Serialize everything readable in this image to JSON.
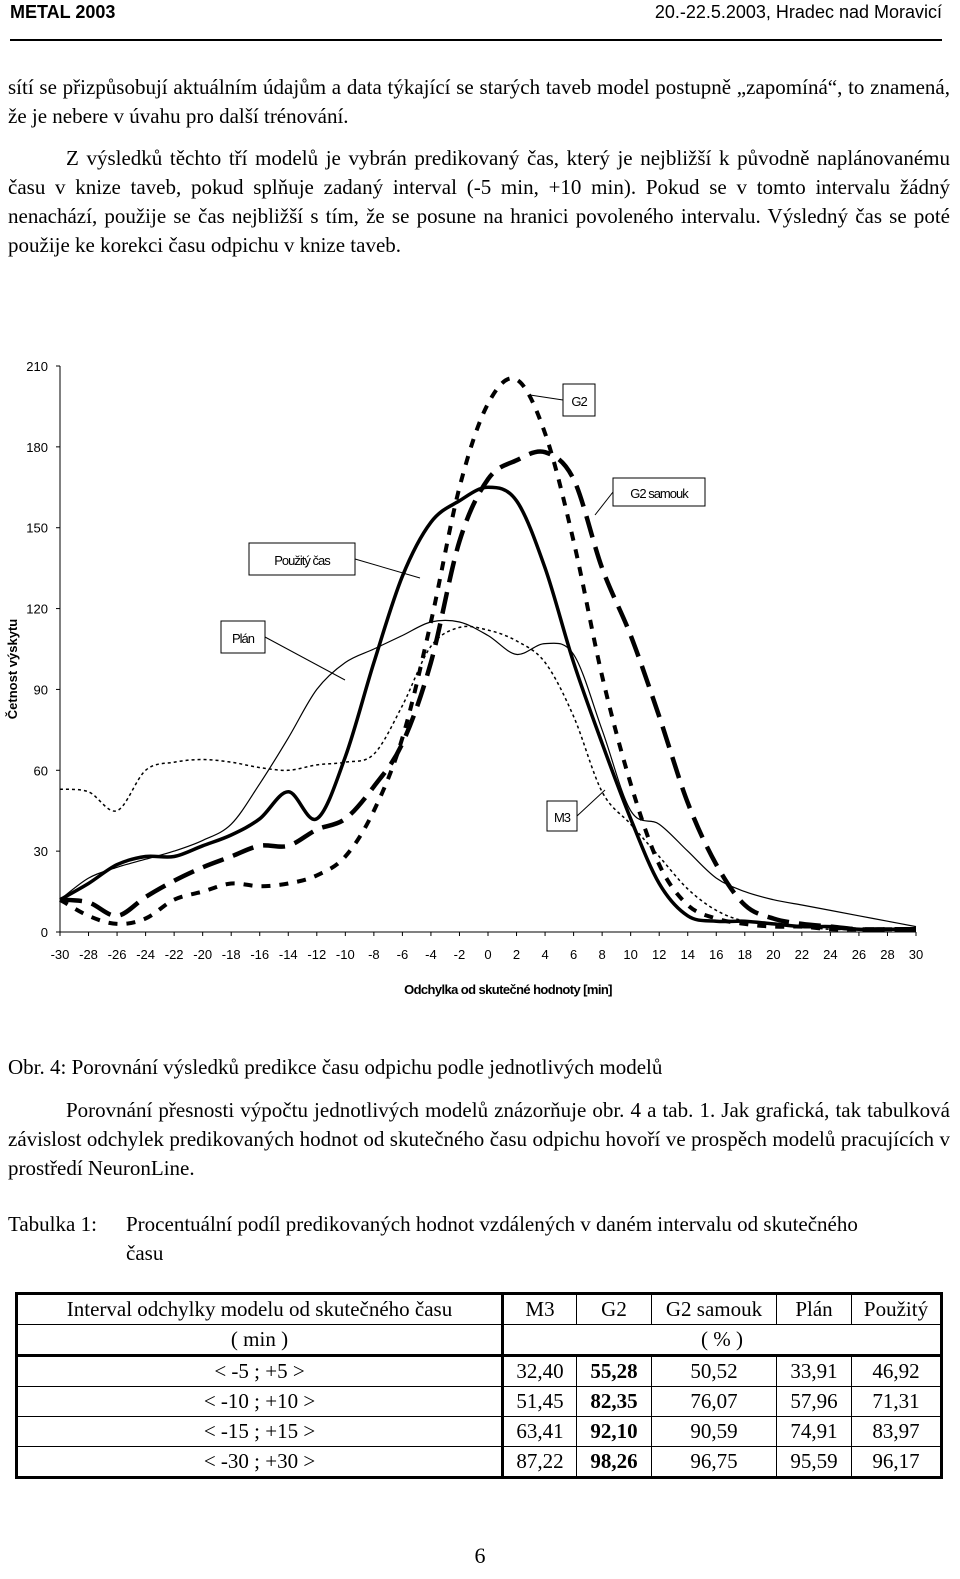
{
  "header": {
    "left": "METAL 2003",
    "right": "20.-22.5.2003, Hradec nad Moravicí"
  },
  "paragraphs": {
    "p1": "sítí se přizpůsobují aktuálním údajům a data týkající se starých taveb model postupně „zapomíná“, to znamená, že je nebere v úvahu pro další trénování.",
    "p2": "Z výsledků těchto tří modelů je vybrán predikovaný čas, který je nejbližší k původně naplánovanému času v knize taveb, pokud splňuje zadaný interval (-5 min, +10 min). Pokud se v tomto intervalu žádný nenachází, použije se čas nejbližší s tím, že se posune na hranici povoleného intervalu. Výsledný čas se poté použije ke korekci času odpichu v knize taveb.",
    "p3": "Porovnání přesnosti výpočtu jednotlivých modelů znázorňuje obr. 4 a tab. 1. Jak grafická, tak tabulková závislost odchylek predikovaných hodnot od skutečného času odpichu hovoří ve prospěch modelů pracujících v prostředí NeuronLine."
  },
  "figure_caption": "Obr. 4: Porovnání výsledků predikce času odpichu podle jednotlivých modelů",
  "chart_data": {
    "type": "line",
    "xlabel": "Odchylka od skutečné hodnoty [min]",
    "ylabel": "Četnost výskytu",
    "xlim": [
      -30,
      30
    ],
    "ylim": [
      0,
      210
    ],
    "x": [
      -30,
      -28,
      -26,
      -24,
      -22,
      -20,
      -18,
      -16,
      -14,
      -12,
      -10,
      -8,
      -6,
      -4,
      -2,
      0,
      2,
      4,
      6,
      8,
      10,
      12,
      14,
      16,
      18,
      20,
      22,
      24,
      26,
      28,
      30
    ],
    "series": [
      {
        "name": "G2",
        "style": "dash-thick",
        "values": [
          12,
          6,
          3,
          5,
          12,
          15,
          18,
          17,
          18,
          21,
          28,
          45,
          72,
          115,
          165,
          196,
          205,
          185,
          145,
          95,
          55,
          25,
          10,
          5,
          3,
          2,
          2,
          1,
          1,
          1,
          1
        ]
      },
      {
        "name": "G2 samouk",
        "style": "longdash-thick",
        "values": [
          12,
          11,
          6,
          13,
          19,
          24,
          28,
          32,
          32,
          38,
          42,
          54,
          70,
          100,
          145,
          168,
          175,
          178,
          168,
          135,
          110,
          80,
          48,
          25,
          10,
          5,
          3,
          2,
          1,
          1,
          1
        ]
      },
      {
        "name": "Plán",
        "style": "dotted",
        "values": [
          53,
          52,
          45,
          60,
          63,
          64,
          63,
          61,
          60,
          62,
          63,
          66,
          84,
          106,
          113,
          112,
          108,
          100,
          80,
          52,
          40,
          28,
          16,
          8,
          4,
          3,
          2,
          1,
          1,
          1,
          1
        ]
      },
      {
        "name": "Použitý čas",
        "style": "solid-thick",
        "values": [
          12,
          18,
          25,
          28,
          28,
          32,
          36,
          42,
          52,
          42,
          65,
          100,
          132,
          152,
          160,
          165,
          160,
          135,
          100,
          70,
          42,
          18,
          6,
          4,
          4,
          3,
          2,
          2,
          1,
          1,
          1
        ]
      },
      {
        "name": "M3",
        "style": "solid-thin",
        "values": [
          12,
          20,
          24,
          27,
          30,
          34,
          40,
          55,
          72,
          90,
          100,
          105,
          110,
          115,
          115,
          110,
          103,
          107,
          103,
          75,
          45,
          40,
          30,
          20,
          15,
          12,
          10,
          8,
          6,
          4,
          2
        ]
      }
    ],
    "xticks": [
      "-30",
      "-28",
      "-26",
      "-24",
      "-22",
      "-20",
      "-18",
      "-16",
      "-14",
      "-12",
      "-10",
      "-8",
      "-6",
      "-4",
      "-2",
      "0",
      "2",
      "4",
      "6",
      "8",
      "10",
      "12",
      "14",
      "16",
      "18",
      "20",
      "22",
      "24",
      "26",
      "28",
      "30"
    ],
    "yticks": [
      "0",
      "30",
      "60",
      "90",
      "120",
      "150",
      "180",
      "210"
    ],
    "annotations": [
      "G2",
      "G2 samouk",
      "Použitý čas",
      "Plán",
      "M3"
    ],
    "grid": false,
    "legend": "callouts"
  },
  "table": {
    "caption_label": "Tabulka 1:",
    "caption_text": "Procentuální podíl predikovaných hodnot vzdálených v daném intervalu od skutečného času",
    "header_first": "Interval odchylky modelu od skutečného času",
    "header_cols": [
      "M3",
      "G2",
      "G2 samouk",
      "Plán",
      "Použitý"
    ],
    "unit_left": "( min )",
    "unit_right": "( % )",
    "rows": [
      {
        "interval": "< -5 ; +5 >",
        "vals": [
          "32,40",
          "55,28",
          "50,52",
          "33,91",
          "46,92"
        ]
      },
      {
        "interval": "< -10 ; +10 >",
        "vals": [
          "51,45",
          "82,35",
          "76,07",
          "57,96",
          "71,31"
        ]
      },
      {
        "interval": "< -15 ; +15 >",
        "vals": [
          "63,41",
          "92,10",
          "90,59",
          "74,91",
          "83,97"
        ]
      },
      {
        "interval": "< -30 ; +30 >",
        "vals": [
          "87,22",
          "98,26",
          "96,75",
          "95,59",
          "96,17"
        ]
      }
    ]
  },
  "page_number": "6"
}
